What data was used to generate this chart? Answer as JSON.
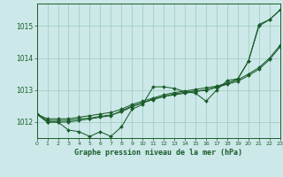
{
  "x": [
    0,
    1,
    2,
    3,
    4,
    5,
    6,
    7,
    8,
    9,
    10,
    11,
    12,
    13,
    14,
    15,
    16,
    17,
    18,
    19,
    20,
    21,
    22,
    23
  ],
  "line1_raw": [
    1012.25,
    1012.0,
    1012.0,
    1011.75,
    1011.7,
    1011.55,
    1011.7,
    1011.55,
    1011.85,
    1012.4,
    1012.55,
    1013.1,
    1013.1,
    1013.05,
    1012.95,
    1012.9,
    1012.65,
    1013.0,
    1013.3,
    1013.35,
    1013.9,
    1015.0,
    1015.2,
    1015.5
  ],
  "line2_raw": [
    1012.25,
    1012.0,
    1012.0,
    1012.0,
    1012.05,
    1012.1,
    1012.15,
    1012.2,
    1012.35,
    1012.5,
    1012.6,
    1012.7,
    1012.8,
    1012.85,
    1012.9,
    1012.95,
    1013.0,
    1013.1,
    1013.2,
    1013.35,
    1013.9,
    1015.05,
    1015.2,
    1015.5
  ],
  "line3_steady": [
    1012.25,
    1012.1,
    1012.1,
    1012.1,
    1012.15,
    1012.2,
    1012.25,
    1012.3,
    1012.4,
    1012.55,
    1012.65,
    1012.75,
    1012.85,
    1012.92,
    1012.97,
    1013.02,
    1013.07,
    1013.12,
    1013.22,
    1013.32,
    1013.5,
    1013.7,
    1014.0,
    1014.4
  ],
  "line4_smooth": [
    1012.25,
    1012.05,
    1012.05,
    1012.05,
    1012.1,
    1012.12,
    1012.18,
    1012.22,
    1012.32,
    1012.48,
    1012.6,
    1012.72,
    1012.8,
    1012.88,
    1012.93,
    1012.97,
    1013.0,
    1013.08,
    1013.18,
    1013.27,
    1013.45,
    1013.65,
    1013.95,
    1014.35
  ],
  "bg_color": "#cce8e8",
  "grid_color": "#99ccbb",
  "line_color": "#1a5c2a",
  "marker": "D",
  "marker_size": 2,
  "xlabel": "Graphe pression niveau de la mer (hPa)",
  "xlim": [
    0,
    23
  ],
  "ylim": [
    1011.5,
    1015.7
  ],
  "yticks": [
    1012,
    1013,
    1014,
    1015
  ],
  "xticks": [
    0,
    1,
    2,
    3,
    4,
    5,
    6,
    7,
    8,
    9,
    10,
    11,
    12,
    13,
    14,
    15,
    16,
    17,
    18,
    19,
    20,
    21,
    22,
    23
  ]
}
